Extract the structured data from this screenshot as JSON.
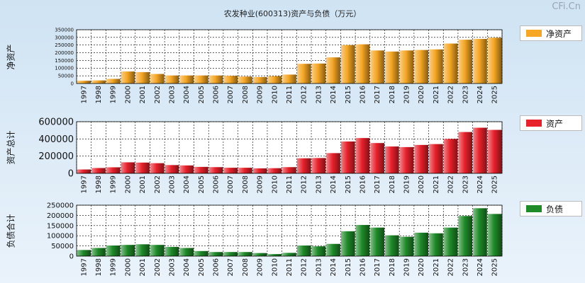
{
  "header": {
    "title": "农发种业(600313)资产与负债（万元）",
    "watermark": "CFi.Cn"
  },
  "chart_data": [
    {
      "type": "bar",
      "title": "",
      "ylabel": "净资产",
      "legend": "净资产",
      "color": "#f5a623",
      "ylim": [
        0,
        350000
      ],
      "yticks": [
        0,
        50000,
        100000,
        150000,
        200000,
        250000,
        300000,
        350000
      ],
      "categories": [
        "1997",
        "1998",
        "1999",
        "2000",
        "2001",
        "2002",
        "2003",
        "2004",
        "2005",
        "2006",
        "2007",
        "2008",
        "2009",
        "2010",
        "2011",
        "2012",
        "2013",
        "2014",
        "2015",
        "2016",
        "2017",
        "2018",
        "2019",
        "2020",
        "2021",
        "2022",
        "2023",
        "2024",
        "2025"
      ],
      "values": [
        18000,
        20000,
        30000,
        78000,
        74000,
        62000,
        52000,
        52000,
        52000,
        52000,
        50000,
        45000,
        42000,
        48000,
        58000,
        128000,
        130000,
        170000,
        250000,
        255000,
        215000,
        208000,
        215000,
        218000,
        222000,
        260000,
        285000,
        290000,
        298000
      ]
    },
    {
      "type": "bar",
      "title": "",
      "ylabel": "资产总计",
      "legend": "资产",
      "color": "#e8202a",
      "ylim": [
        0,
        600000
      ],
      "yticks": [
        0,
        200000,
        400000,
        600000
      ],
      "categories": [
        "1997",
        "1998",
        "1999",
        "2000",
        "2001",
        "2002",
        "2003",
        "2004",
        "2005",
        "2006",
        "2007",
        "2008",
        "2009",
        "2010",
        "2011",
        "2012",
        "2013",
        "2014",
        "2015",
        "2016",
        "2017",
        "2018",
        "2019",
        "2020",
        "2021",
        "2022",
        "2023",
        "2024",
        "2025"
      ],
      "values": [
        45000,
        62000,
        70000,
        128000,
        125000,
        118000,
        96000,
        92000,
        75000,
        72000,
        65000,
        65000,
        58000,
        60000,
        72000,
        175000,
        178000,
        235000,
        370000,
        410000,
        352000,
        312000,
        305000,
        330000,
        340000,
        400000,
        480000,
        530000,
        505000
      ]
    },
    {
      "type": "bar",
      "title": "",
      "ylabel": "负债合计",
      "legend": "负债",
      "color": "#1e8a28",
      "ylim": [
        0,
        250000
      ],
      "yticks": [
        0,
        50000,
        100000,
        150000,
        200000,
        250000
      ],
      "categories": [
        "1997",
        "1998",
        "1999",
        "2000",
        "2001",
        "2002",
        "2003",
        "2004",
        "2005",
        "2006",
        "2007",
        "2008",
        "2009",
        "2010",
        "2011",
        "2012",
        "2013",
        "2014",
        "2015",
        "2016",
        "2017",
        "2018",
        "2019",
        "2020",
        "2021",
        "2022",
        "2023",
        "2024",
        "2025"
      ],
      "values": [
        30000,
        40000,
        52000,
        55000,
        58000,
        55000,
        45000,
        40000,
        25000,
        20000,
        20000,
        20000,
        15000,
        10000,
        16000,
        52000,
        48000,
        60000,
        122000,
        153000,
        140000,
        102000,
        95000,
        115000,
        112000,
        140000,
        197000,
        235000,
        207000
      ]
    }
  ]
}
